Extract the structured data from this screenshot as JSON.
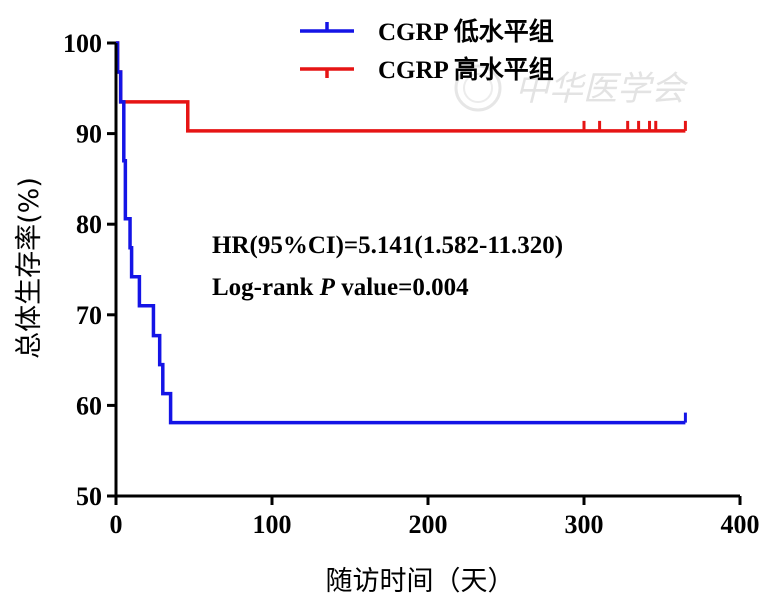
{
  "chart_data": {
    "type": "line",
    "subtype": "kaplan-meier",
    "title": "",
    "xlabel": "随访时间（天）",
    "ylabel": "总体生存率(%)",
    "xlim": [
      0,
      400
    ],
    "ylim": [
      50,
      100
    ],
    "x_ticks": [
      0,
      100,
      200,
      300,
      400
    ],
    "y_ticks": [
      50,
      60,
      70,
      80,
      90,
      100
    ],
    "x_tick_labels": [
      "0",
      "100",
      "200",
      "300",
      "400"
    ],
    "y_tick_labels": [
      "50",
      "60",
      "70",
      "80",
      "90",
      "100"
    ],
    "grid": false,
    "legend_position": "top-center",
    "annotations": [
      "HR(95%CI)=5.141(1.582-11.320)",
      "Log-rank  P value=0.004"
    ],
    "series": [
      {
        "name": "CGRP 低水平组",
        "color": "#1414e6",
        "steps": [
          [
            0,
            100
          ],
          [
            1,
            96.8
          ],
          [
            3,
            93.5
          ],
          [
            5,
            87
          ],
          [
            6,
            80.6
          ],
          [
            9,
            77.4
          ],
          [
            10,
            74.2
          ],
          [
            15,
            71
          ],
          [
            23,
            71
          ],
          [
            24,
            67.7
          ],
          [
            28,
            64.5
          ],
          [
            30,
            61.3
          ],
          [
            35,
            58.1
          ],
          [
            365,
            58.1
          ]
        ],
        "censor_times": [
          365
        ]
      },
      {
        "name": "CGRP 高水平组",
        "color": "#e61414",
        "steps": [
          [
            0,
            100
          ],
          [
            1,
            96.8
          ],
          [
            3,
            93.5
          ],
          [
            45,
            93.5
          ],
          [
            46,
            90.3
          ],
          [
            365,
            90.3
          ]
        ],
        "censor_times": [
          300,
          310,
          328,
          335,
          342,
          346,
          365
        ]
      }
    ]
  },
  "watermark": {
    "text": "中华医学会"
  }
}
